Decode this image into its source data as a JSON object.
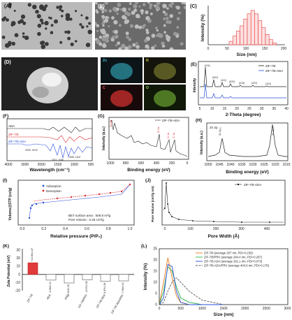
{
  "panels": {
    "A": {
      "label": "(A)"
    },
    "B": {
      "label": "(B)"
    },
    "C": {
      "label": "(C)",
      "xlabel": "Size (nm)",
      "ylabel": "Intensity (%)",
      "xticks": [
        "0",
        "50",
        "100",
        "150",
        "200"
      ]
    },
    "D": {
      "label": "(D)",
      "map_labels": [
        "Zn",
        "N",
        "C",
        "O"
      ]
    },
    "E": {
      "label": "(E)",
      "xlabel": "2-Theta (degree)",
      "ylabel": "Intensity",
      "xticks": [
        "5",
        "10",
        "15",
        "20",
        "25",
        "30",
        "35",
        "40"
      ],
      "legend": [
        "ZIF-7/8",
        "ZIF-7/8-ADA"
      ],
      "peaks": [
        "(011)",
        "(002)",
        "(112)",
        "(022)",
        "(013)",
        "(222)",
        "(114)",
        "(233)",
        "(134)"
      ]
    },
    "F": {
      "label": "(F)",
      "xlabel": "Wavelength (cm⁻¹)",
      "xticks": [
        "4000",
        "3000",
        "2000",
        "1500",
        "1000",
        "500"
      ],
      "series": [
        "ADA",
        "ZIF-7/8",
        "ZIF-7/8-ADA"
      ],
      "annotations": [
        "1095, 1102",
        "1011, 1040",
        "2929, 3129"
      ]
    },
    "G": {
      "label": "(G)",
      "xlabel": "Binding energy (eV)",
      "ylabel": "Intensity (a.u.)",
      "legend": "ZIF-7/8-ADA",
      "xticks": [
        "1000",
        "800",
        "600",
        "400",
        "200",
        "0"
      ],
      "peaks": [
        "Zn 2p",
        "O 1s",
        "N 1s",
        "C 1s"
      ]
    },
    "H": {
      "label": "(H)",
      "xlabel": "Binding energy (eV)",
      "ylabel": "Intensity (a.u.)",
      "title": "Zn 2p",
      "xticks": [
        "1050",
        "1045",
        "1040",
        "1035",
        "1030",
        "1025",
        "1020",
        "1015"
      ],
      "peaks": [
        "Zn 2p₁/₂",
        "Zn 2p₃/₂"
      ]
    },
    "I": {
      "label": "(I)",
      "xlabel": "Relative pressure (P/P₀)",
      "ylabel": "Volume@STP (cc/g)",
      "legend": [
        "Adsorption",
        "Desorption"
      ],
      "note1": "BET surface area : 509.8 m²/g",
      "note2": "Pore Volume : 0.26 cm³/g",
      "xticks": [
        "0.0",
        "0.2",
        "0.4",
        "0.6",
        "0.8",
        "1.0"
      ]
    },
    "J": {
      "label": "(J)",
      "xlabel": "Pore Width (Å)",
      "ylabel": "Pore Volume (cm³/g nm)",
      "legend": "ZIF-7/8-ADA",
      "xticks": [
        "0",
        "100",
        "200",
        "300",
        "400"
      ]
    },
    "K": {
      "label": "(K)",
      "ylabel": "Zeta Potential (mV)",
      "categories": [
        "ZIF-7/8",
        "ADA",
        "PRV",
        "ZIF-7/8/PRV",
        "ZIF-7/8-ADA",
        "ZIF-7/8-ADA/PRV"
      ],
      "values": [
        14.36,
        -6.96,
        -10.5,
        -6.57,
        -8.47,
        -7.94
      ],
      "value_labels": [
        "+14.36±1.47",
        "-6.96±0.31",
        "-10.50±0.35",
        "-6.57±0.56",
        "-8.47±0.36",
        "-7.94±0.61"
      ],
      "yticks": [
        "30",
        "20",
        "10",
        "0",
        "-10",
        "-20"
      ]
    },
    "L": {
      "label": "(L)",
      "xlabel": "Size (nm)",
      "ylabel": "Intensity (%)",
      "xticks": [
        "0",
        "500",
        "1000",
        "1500",
        "2000",
        "2500",
        "3000"
      ],
      "yticks": [
        "0",
        "5",
        "10",
        "15",
        "20",
        "25"
      ],
      "legend": [
        "ZIF-7/8 (average 207 nm, PDI=0.236)",
        "ZIF-7/8/PRV (average 284.4 nm, PDI=0.267)",
        "ZIF-7/8-ADA (average 261.1 nm, PDI=0.073)",
        "ZIF-7/8-ADA/PRV (average 404.6 nm, PDI=0.176)"
      ]
    }
  },
  "chart_data": [
    {
      "type": "bar",
      "panel": "C",
      "categories": [
        "70",
        "75",
        "80",
        "85",
        "90",
        "95",
        "100",
        "105",
        "110",
        "115",
        "120",
        "125",
        "130"
      ],
      "values": [
        2,
        5,
        8,
        11,
        15,
        18,
        20,
        18,
        14,
        10,
        6,
        3,
        1
      ],
      "xlabel": "Size (nm)",
      "ylabel": "Intensity (%)"
    },
    {
      "type": "bar",
      "panel": "K",
      "categories": [
        "ZIF-7/8",
        "ADA",
        "PRV",
        "ZIF-7/8/PRV",
        "ZIF-7/8-ADA",
        "ZIF-7/8-ADA/PRV"
      ],
      "values": [
        14.36,
        -6.96,
        -10.5,
        -6.57,
        -8.47,
        -7.94
      ],
      "ylabel": "Zeta Potential (mV)",
      "ylim": [
        -20,
        30
      ]
    },
    {
      "type": "line",
      "panel": "L",
      "x": [
        0,
        100,
        200,
        300,
        400,
        500,
        700,
        1000,
        1500
      ],
      "series": [
        {
          "name": "ZIF-7/8 (average 207 nm, PDI=0.236)",
          "values": [
            0,
            10,
            21,
            12,
            4,
            1,
            0,
            0,
            0
          ]
        },
        {
          "name": "ZIF-7/8/PRV (average 284.4 nm, PDI=0.267)",
          "values": [
            0,
            6,
            17,
            15,
            8,
            3,
            1,
            0,
            0
          ]
        },
        {
          "name": "ZIF-7/8-ADA (average 261.1 nm, PDI=0.073)",
          "values": [
            0,
            3,
            18,
            17,
            6,
            1,
            0,
            0,
            0
          ]
        },
        {
          "name": "ZIF-7/8-ADA/PRV (average 404.6 nm, PDI=0.176)",
          "values": [
            0,
            1,
            6,
            10,
            12,
            10,
            6,
            2,
            0
          ]
        }
      ],
      "xlabel": "Size (nm)",
      "ylabel": "Intensity (%)",
      "ylim": [
        0,
        25
      ]
    }
  ]
}
